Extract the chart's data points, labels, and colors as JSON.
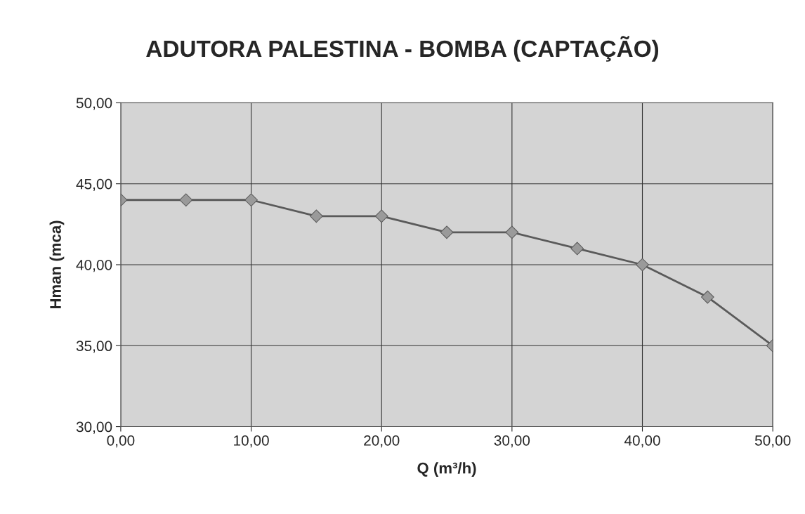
{
  "chart_data": {
    "type": "line",
    "title": "ADUTORA PALESTINA - BOMBA (CAPTAÇÃO)",
    "xlabel": "Q (m³/h)",
    "ylabel": "Hman (mca)",
    "x": [
      0,
      5,
      10,
      15,
      20,
      25,
      30,
      35,
      40,
      45,
      50
    ],
    "series": [
      {
        "color": "#5a5a5a",
        "values": [
          44,
          44,
          44,
          43,
          43,
          42,
          42,
          41,
          40,
          38,
          35
        ]
      }
    ],
    "xlim": [
      0,
      50
    ],
    "ylim": [
      30,
      50
    ],
    "xticks": [
      {
        "value": 0,
        "label": "0,00"
      },
      {
        "value": 10,
        "label": "10,00"
      },
      {
        "value": 20,
        "label": "20,00"
      },
      {
        "value": 30,
        "label": "30,00"
      },
      {
        "value": 40,
        "label": "40,00"
      },
      {
        "value": 50,
        "label": "50,00"
      }
    ],
    "yticks": [
      {
        "value": 30,
        "label": "30,00"
      },
      {
        "value": 35,
        "label": "35,00"
      },
      {
        "value": 40,
        "label": "40,00"
      },
      {
        "value": 45,
        "label": "45,00"
      },
      {
        "value": 50,
        "label": "50,00"
      }
    ],
    "grid": true,
    "marker": "diamond",
    "line_style": "solid",
    "legend": false
  }
}
